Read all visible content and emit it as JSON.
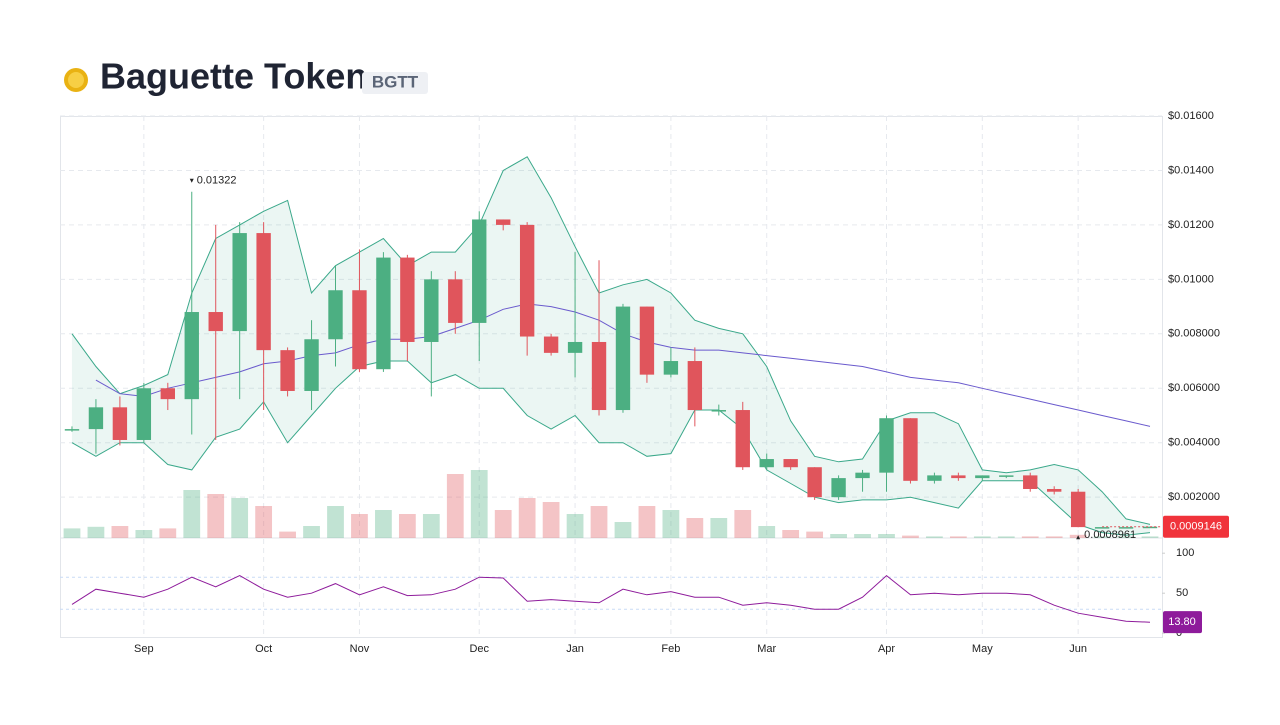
{
  "chart_data": {
    "type": "candlestick",
    "title": "Baguette Token",
    "symbol": "BGTT",
    "categories": [
      null,
      null,
      null,
      "Sep",
      null,
      null,
      null,
      null,
      "Oct",
      null,
      null,
      null,
      "Nov",
      null,
      null,
      null,
      null,
      "Dec",
      null,
      null,
      null,
      "Jan",
      null,
      null,
      null,
      "Feb",
      null,
      null,
      null,
      "Mar",
      null,
      null,
      null,
      null,
      "Apr",
      null,
      null,
      null,
      "May",
      null,
      null,
      null,
      "Jun",
      null,
      null,
      null
    ],
    "open": [
      0.0045,
      0.0045,
      0.0053,
      0.0041,
      0.006,
      0.0056,
      0.0088,
      0.0081,
      0.0117,
      0.0074,
      0.0059,
      0.0078,
      0.0096,
      0.0067,
      0.0108,
      0.0077,
      0.01,
      0.0084,
      0.0122,
      0.012,
      0.0079,
      0.0073,
      0.0077,
      0.0052,
      0.009,
      0.0065,
      0.007,
      0.0052,
      0.0052,
      0.0031,
      0.0034,
      0.0031,
      0.002,
      0.0027,
      0.0029,
      0.0049,
      0.0026,
      0.0028,
      0.0027,
      0.0028,
      0.0028,
      0.0023,
      0.0022,
      0.0009,
      0.0009,
      0.0009
    ],
    "high": [
      0.0046,
      0.0056,
      0.0057,
      0.0062,
      0.0062,
      0.01322,
      0.012,
      0.0121,
      0.0121,
      0.0075,
      0.0085,
      0.0105,
      0.0111,
      0.011,
      0.0109,
      0.0103,
      0.0103,
      0.0125,
      0.0122,
      0.0121,
      0.008,
      0.011,
      0.0107,
      0.0091,
      0.009,
      0.0075,
      0.0075,
      0.0054,
      0.0055,
      0.0036,
      0.0034,
      0.0031,
      0.0028,
      0.003,
      0.005,
      0.0049,
      0.0029,
      0.0029,
      0.0028,
      0.0028,
      0.0029,
      0.0024,
      0.0023,
      0.0009,
      0.0009,
      0.0009146
    ],
    "low": [
      0.0044,
      0.0036,
      0.0039,
      0.004,
      0.0052,
      0.0043,
      0.0041,
      0.0056,
      0.0052,
      0.0057,
      0.0052,
      0.0068,
      0.0066,
      0.0066,
      0.007,
      0.0057,
      0.008,
      0.007,
      0.0118,
      0.0072,
      0.0072,
      0.0064,
      0.005,
      0.0051,
      0.0062,
      0.0064,
      0.0046,
      0.005,
      0.003,
      0.003,
      0.003,
      0.0019,
      0.0019,
      0.0022,
      0.0022,
      0.0025,
      0.0025,
      0.0026,
      0.0026,
      0.0027,
      0.0022,
      0.0021,
      0.0008961,
      0.0009,
      0.0009,
      0.0009
    ],
    "close": [
      0.0045,
      0.0053,
      0.0041,
      0.006,
      0.0056,
      0.0088,
      0.0081,
      0.0117,
      0.0074,
      0.0059,
      0.0078,
      0.0096,
      0.0067,
      0.0108,
      0.0077,
      0.01,
      0.0084,
      0.0122,
      0.012,
      0.0079,
      0.0073,
      0.0077,
      0.0052,
      0.009,
      0.0065,
      0.007,
      0.0052,
      0.0052,
      0.0031,
      0.0034,
      0.0031,
      0.002,
      0.0027,
      0.0029,
      0.0049,
      0.0026,
      0.0028,
      0.0027,
      0.0028,
      0.0028,
      0.0023,
      0.0022,
      0.0009,
      0.0009,
      0.0009,
      0.0009146
    ],
    "volume": [
      12,
      14,
      15,
      10,
      12,
      60,
      55,
      50,
      40,
      8,
      15,
      40,
      30,
      35,
      30,
      30,
      80,
      85,
      35,
      50,
      45,
      30,
      40,
      20,
      40,
      35,
      25,
      25,
      35,
      15,
      10,
      8,
      5,
      5,
      5,
      3,
      2,
      2,
      2,
      2,
      2,
      2,
      4,
      2,
      2,
      2
    ],
    "volume_ylim": [
      0,
      100
    ],
    "bb_upper": [
      0.008,
      0.0068,
      0.0058,
      0.0061,
      0.0065,
      0.0095,
      0.0115,
      0.012,
      0.0125,
      0.0129,
      0.0095,
      0.0105,
      0.011,
      0.0115,
      0.0105,
      0.011,
      0.011,
      0.012,
      0.014,
      0.0145,
      0.013,
      0.0112,
      0.0095,
      0.0098,
      0.01,
      0.0095,
      0.0085,
      0.0082,
      0.008,
      0.0068,
      0.0048,
      0.0035,
      0.0033,
      0.0034,
      0.0048,
      0.0051,
      0.0051,
      0.0047,
      0.003,
      0.0029,
      0.003,
      0.0032,
      0.003,
      0.0022,
      0.0012,
      0.001
    ],
    "bb_lower": [
      0.004,
      0.0035,
      0.004,
      0.004,
      0.0032,
      0.003,
      0.0042,
      0.0045,
      0.0055,
      0.004,
      0.005,
      0.006,
      0.0068,
      0.007,
      0.007,
      0.0062,
      0.0065,
      0.006,
      0.006,
      0.005,
      0.0045,
      0.005,
      0.004,
      0.004,
      0.0035,
      0.0036,
      0.0052,
      0.0052,
      0.0045,
      0.003,
      0.0025,
      0.002,
      0.0018,
      0.0019,
      0.0019,
      0.002,
      0.0018,
      0.0016,
      0.0026,
      0.0026,
      0.0026,
      0.0018,
      0.001,
      0.0007,
      0.0006,
      0.0007
    ],
    "ma": [
      null,
      0.0063,
      0.0058,
      0.0057,
      0.006,
      0.0062,
      0.0064,
      0.0066,
      0.0069,
      0.007,
      0.0072,
      0.0073,
      0.0076,
      0.0078,
      0.0078,
      0.0079,
      0.0082,
      0.0085,
      0.0089,
      0.0091,
      0.009,
      0.0088,
      0.0085,
      0.008,
      0.0077,
      0.0075,
      0.0074,
      0.0074,
      0.0073,
      0.0072,
      0.0071,
      0.007,
      0.0069,
      0.0068,
      0.0066,
      0.0064,
      0.0063,
      0.0062,
      0.006,
      0.0058,
      0.0056,
      0.0054,
      0.0052,
      0.005,
      0.0048,
      0.0046
    ],
    "up_color": "#4caf82",
    "down_color": "#e0555c",
    "band_color": "#3aa88a",
    "ma_color": "#6a5acd",
    "ylim": [
      0.0005,
      0.016
    ],
    "yticks": [
      {
        "value": 0.002,
        "label": "$0.002000"
      },
      {
        "value": 0.004,
        "label": "$0.004000"
      },
      {
        "value": 0.006,
        "label": "$0.006000"
      },
      {
        "value": 0.008,
        "label": "$0.008000"
      },
      {
        "value": 0.01,
        "label": "$0.01000"
      },
      {
        "value": 0.012,
        "label": "$0.01200"
      },
      {
        "value": 0.014,
        "label": "$0.01400"
      },
      {
        "value": 0.016,
        "label": "$0.01600"
      }
    ],
    "grid": true,
    "rsi": {
      "values": [
        36,
        55,
        50,
        45,
        55,
        70,
        58,
        72,
        55,
        45,
        50,
        62,
        48,
        58,
        47,
        48,
        55,
        70,
        69,
        40,
        42,
        40,
        38,
        55,
        48,
        52,
        45,
        45,
        35,
        38,
        35,
        30,
        30,
        45,
        72,
        48,
        50,
        48,
        50,
        50,
        48,
        35,
        25,
        20,
        15,
        13.8
      ],
      "last_value_label": "13.80",
      "color": "#8e1b9b",
      "ylim": [
        -6,
        119
      ],
      "yticks": [
        0,
        50,
        100
      ],
      "levels": [
        30,
        70
      ]
    }
  }
}
